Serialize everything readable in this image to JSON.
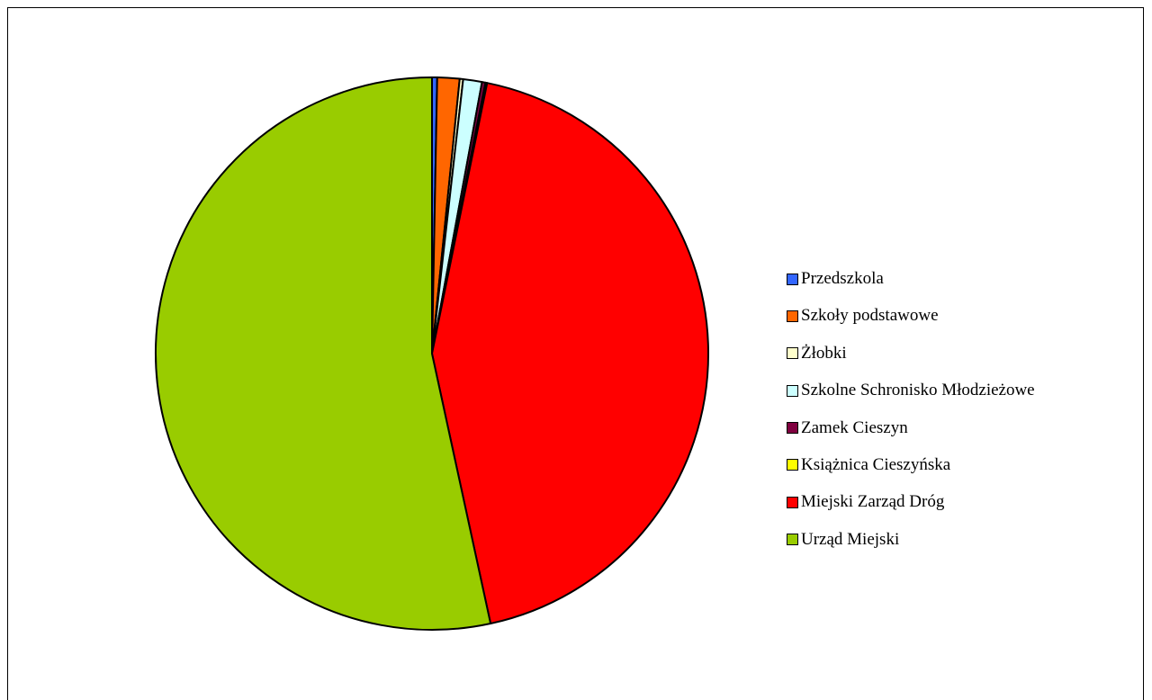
{
  "chart_data": {
    "type": "pie",
    "title": "",
    "start_angle_deg": 0,
    "direction": "clockwise",
    "legend_position": "right",
    "categories": [
      "Przedszkola",
      "Szkoły podstawowe",
      "Żłobki",
      "Szkolne Schronisko Młodzieżowe",
      "Zamek Cieszyn",
      "Książnica Cieszyńska",
      "Miejski Zarząd Dróg",
      "Urząd Miejski"
    ],
    "values": [
      0.3,
      1.3,
      0.2,
      1.1,
      0.2,
      0.1,
      43.4,
      53.4
    ],
    "colors": [
      "#3366FF",
      "#FF6600",
      "#FFFFCC",
      "#CCFFFF",
      "#800040",
      "#FFFF00",
      "#FF0000",
      "#99CC00"
    ]
  }
}
